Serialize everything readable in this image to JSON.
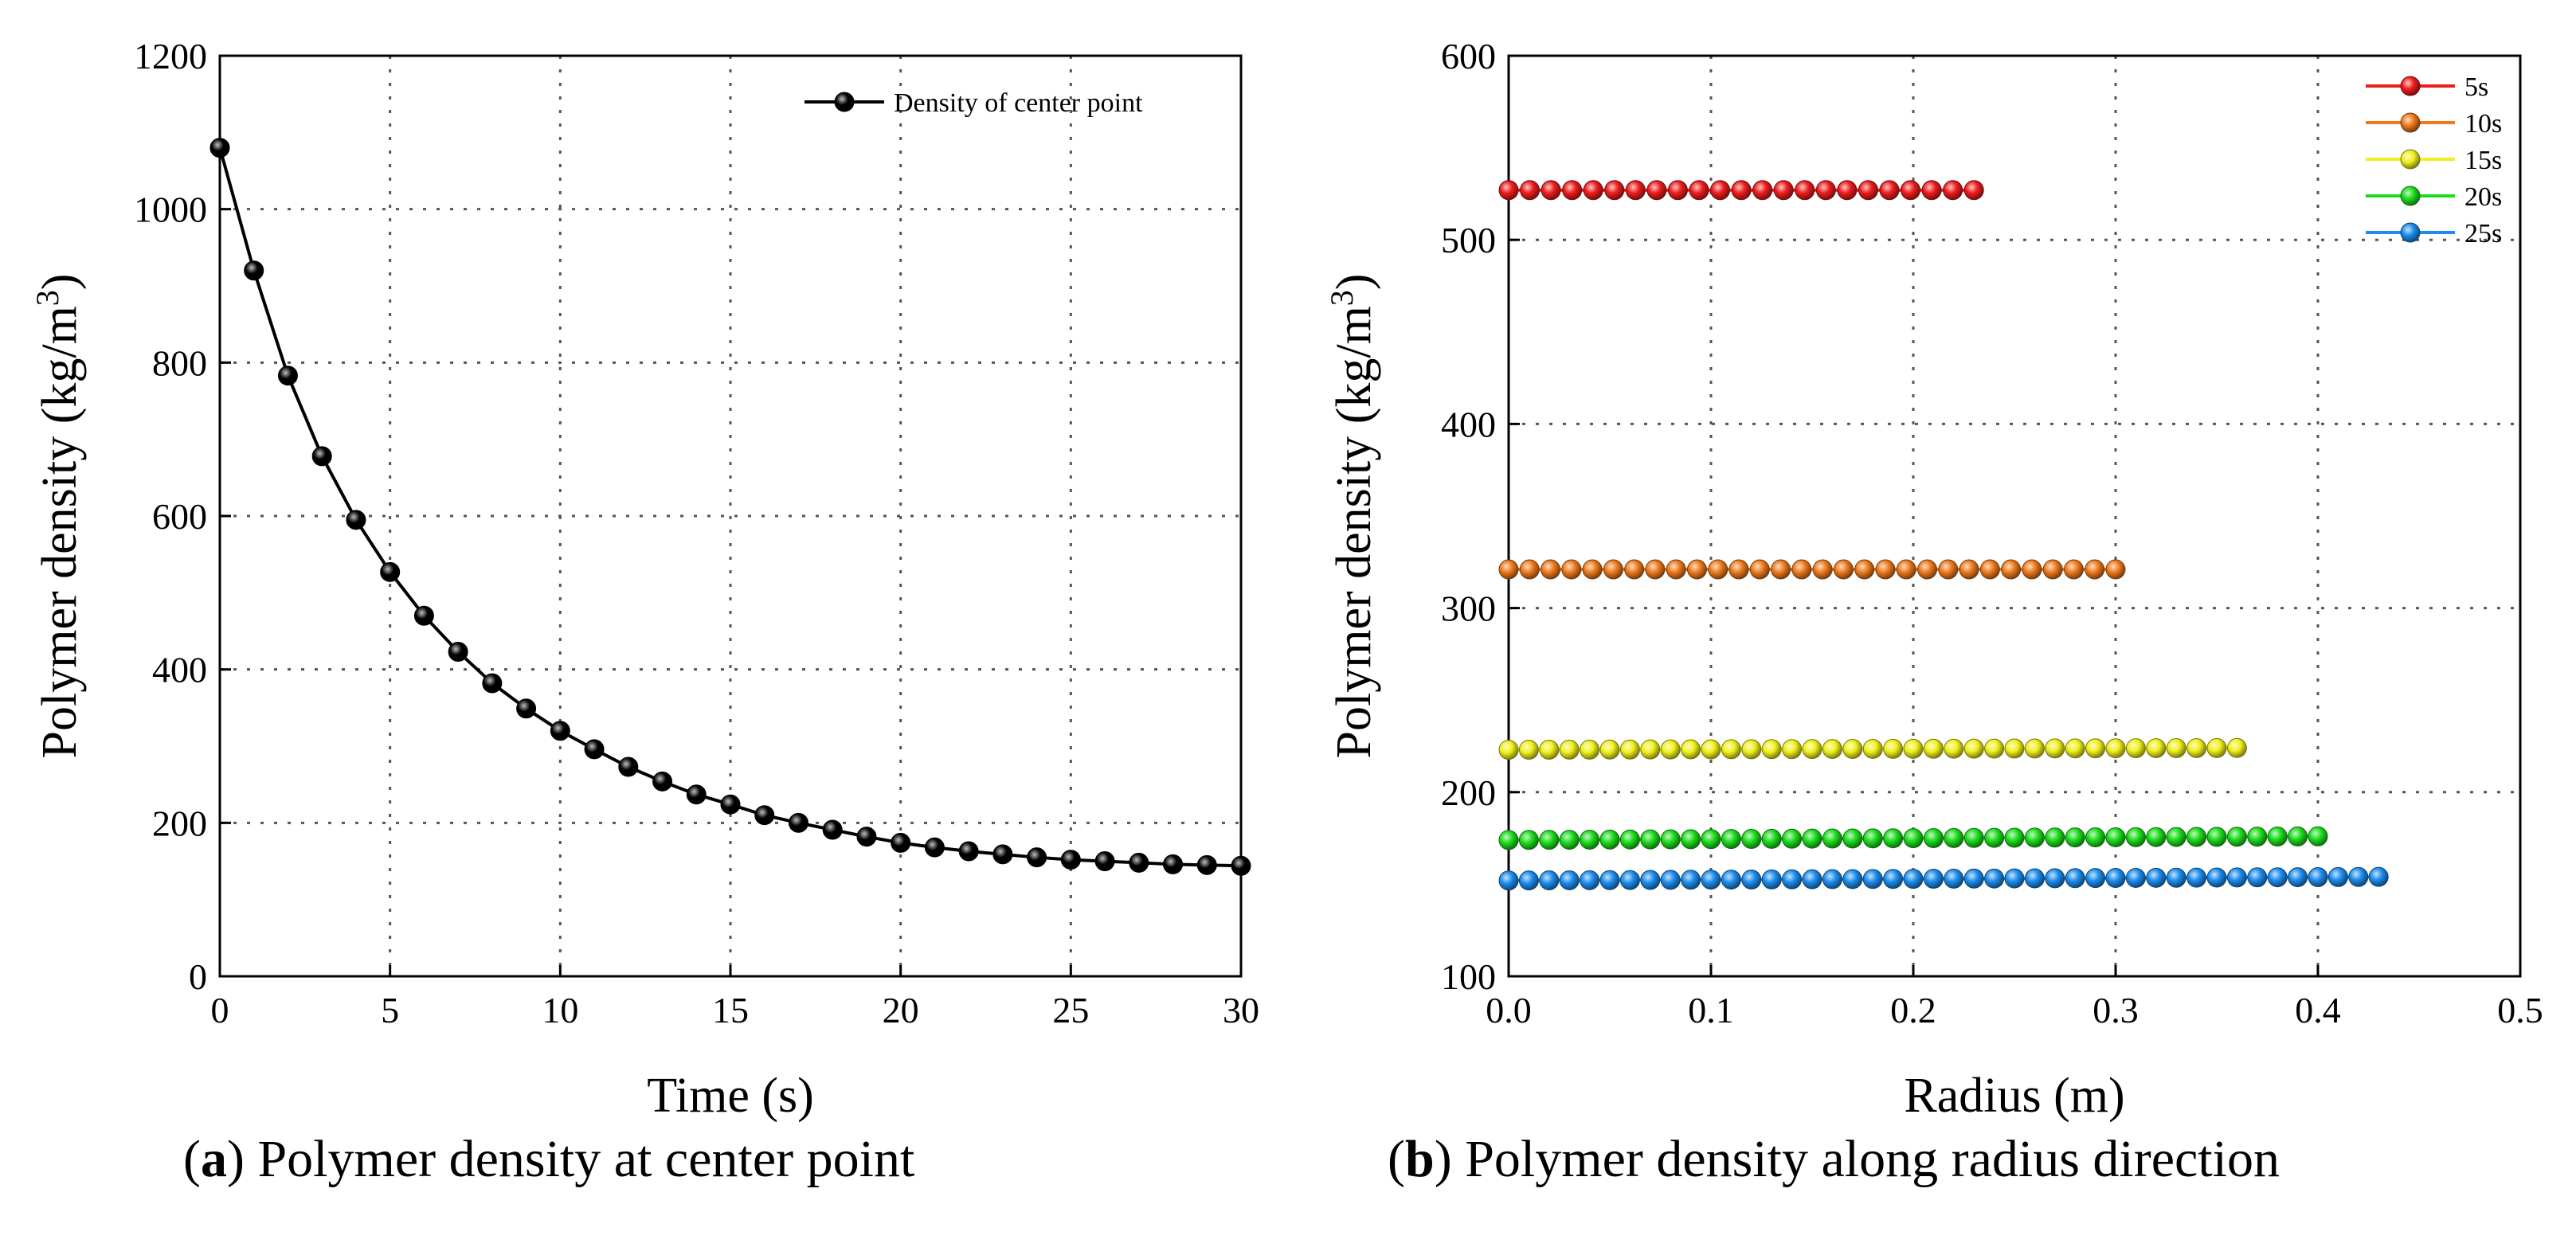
{
  "chart_data": [
    {
      "type": "line",
      "id": "a",
      "title": "",
      "xlabel": "Time (s)",
      "ylabel_main": "Polymer density (kg/m",
      "ylabel_sup": "3",
      "ylabel_tail": ")",
      "xlim": [
        0,
        30
      ],
      "ylim": [
        0,
        1200
      ],
      "xticks": [
        0,
        5,
        10,
        15,
        20,
        25,
        30
      ],
      "xtick_labels": [
        "0",
        "5",
        "10",
        "15",
        "20",
        "25",
        "30"
      ],
      "yticks": [
        0,
        200,
        400,
        600,
        800,
        1000,
        1200
      ],
      "ytick_labels": [
        "0",
        "200",
        "400",
        "600",
        "800",
        "1000",
        "1200"
      ],
      "grid": true,
      "legend_position": "top-right",
      "series": [
        {
          "name": "Density of center point",
          "color": "#000000",
          "marker": "sphere",
          "x": [
            0,
            1,
            2,
            3,
            4,
            5,
            6,
            7,
            8,
            9,
            10,
            11,
            12,
            13,
            14,
            15,
            16,
            17,
            18,
            19,
            20,
            21,
            22,
            23,
            24,
            25,
            26,
            27,
            28,
            29,
            30
          ],
          "values": [
            1080,
            920,
            783,
            678,
            595,
            527,
            470,
            423,
            382,
            349,
            320,
            296,
            273,
            254,
            237,
            224,
            210,
            200,
            191,
            182,
            174,
            168,
            163,
            159,
            155,
            152,
            150,
            148,
            146,
            145,
            144
          ]
        }
      ],
      "caption_bold": "a",
      "caption_text": "Polymer density at center point"
    },
    {
      "type": "line",
      "id": "b",
      "title": "",
      "xlabel": "Radius (m)",
      "ylabel_main": "Polymer density (kg/m",
      "ylabel_sup": "3",
      "ylabel_tail": ")",
      "xlim": [
        0,
        0.5
      ],
      "ylim": [
        100,
        600
      ],
      "xticks": [
        0,
        0.1,
        0.2,
        0.3,
        0.4,
        0.5
      ],
      "xtick_labels": [
        "0.0",
        "0.1",
        "0.2",
        "0.3",
        "0.4",
        "0.5"
      ],
      "yticks": [
        100,
        200,
        300,
        400,
        500,
        600
      ],
      "ytick_labels": [
        "100",
        "200",
        "300",
        "400",
        "500",
        "600"
      ],
      "grid": true,
      "legend_position": "top-right",
      "series": [
        {
          "name": "5s",
          "color": "#ee1c1c",
          "x_start": 0,
          "x_end": 0.23,
          "points": 23,
          "value_start": 527,
          "value_end": 527
        },
        {
          "name": "10s",
          "color": "#ee7a1c",
          "x_start": 0,
          "x_end": 0.3,
          "points": 30,
          "value_start": 321,
          "value_end": 321
        },
        {
          "name": "15s",
          "color": "#f0f01c",
          "x_start": 0,
          "x_end": 0.36,
          "points": 37,
          "value_start": 223,
          "value_end": 224
        },
        {
          "name": "20s",
          "color": "#1cdc1c",
          "x_start": 0,
          "x_end": 0.4,
          "points": 41,
          "value_start": 174,
          "value_end": 176
        },
        {
          "name": "25s",
          "color": "#1c8cee",
          "x_start": 0,
          "x_end": 0.43,
          "points": 44,
          "value_start": 152,
          "value_end": 154
        }
      ],
      "caption_bold": "b",
      "caption_text": "Polymer density along radius direction"
    }
  ]
}
